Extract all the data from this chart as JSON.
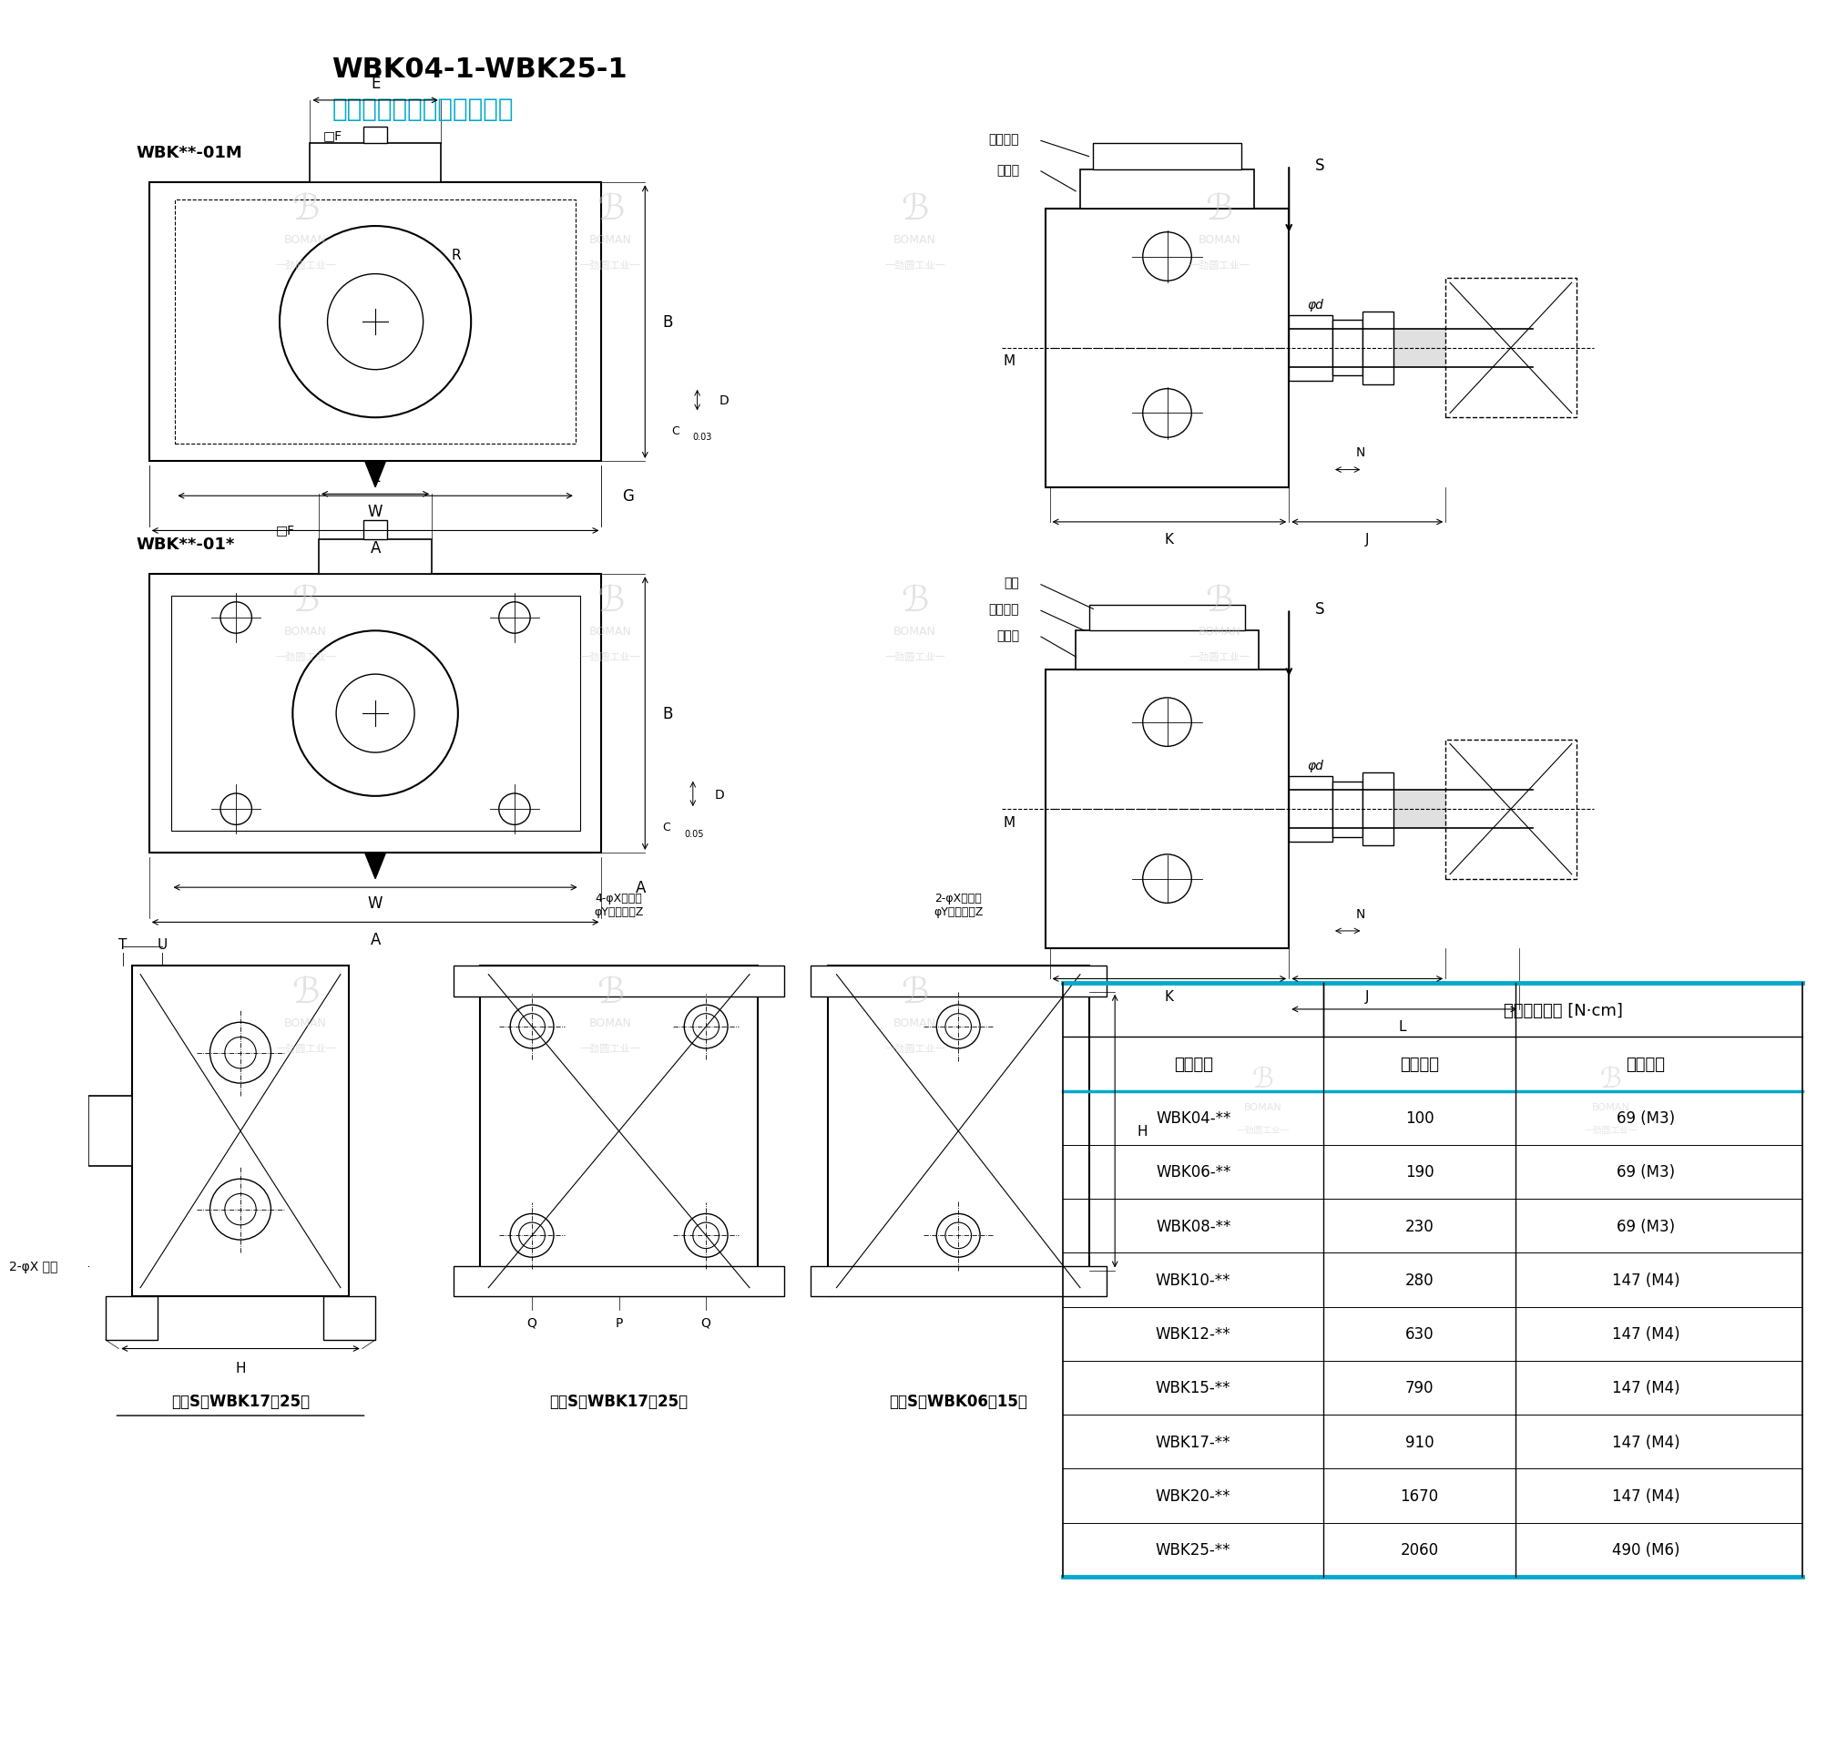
{
  "title1": "WBK04-1-WBK25-1",
  "title2": "小型设备小负载用支撑单元",
  "label_01M": "WBK**-01M",
  "label_01star": "WBK**-01*",
  "bg_color": "#ffffff",
  "cyan_color": "#00aacc",
  "table_header_bg": "#00aacc",
  "table_border_color": "#00aacc",
  "table_title": "参考扭紧力矩 [N·cm]",
  "col1_header": "公称型号",
  "col2_header": "锁紧螺母",
  "col3_header": "紧定螺钉",
  "table_data": [
    [
      "WBK04-**",
      "100",
      "69 (M3)"
    ],
    [
      "WBK06-**",
      "190",
      "69 (M3)"
    ],
    [
      "WBK08-**",
      "230",
      "69 (M3)"
    ],
    [
      "WBK10-**",
      "280",
      "147 (M4)"
    ],
    [
      "WBK12-**",
      "630",
      "147 (M4)"
    ],
    [
      "WBK15-**",
      "790",
      "147 (M4)"
    ],
    [
      "WBK17-**",
      "910",
      "147 (M4)"
    ],
    [
      "WBK20-**",
      "1670",
      "147 (M4)"
    ],
    [
      "WBK25-**",
      "2060",
      "490 (M6)"
    ]
  ],
  "watermark_text": [
    "B",
    "BOMAN",
    "劲圆工业"
  ],
  "bottom_label1": "俯视S（WBK17～25）",
  "bottom_label2": "俯视S（WBK06～15）",
  "label_2phiX": "2-φX 通孔",
  "label_4phiX": "4-φX通孔后\nφY沉孔深度Z",
  "label_2phiX2": "2-φX通孔后\nφY沉孔深度Z"
}
